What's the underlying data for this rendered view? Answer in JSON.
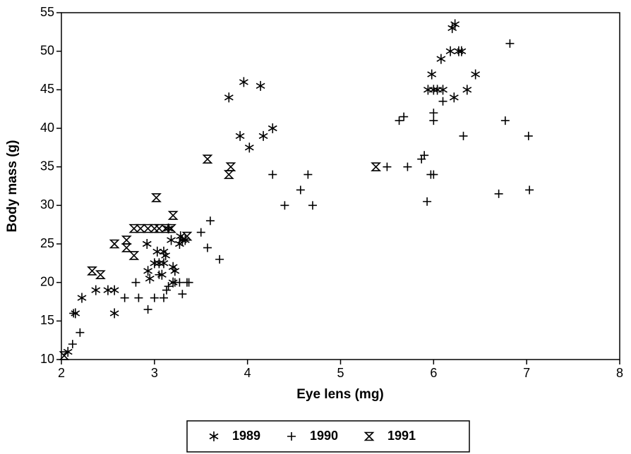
{
  "chart_data": {
    "type": "scatter",
    "xlabel": "Eye lens (mg)",
    "ylabel": "Body mass (g)",
    "xlim": [
      2,
      8
    ],
    "ylim": [
      10,
      55
    ],
    "xticks": [
      2,
      3,
      4,
      5,
      6,
      7,
      8
    ],
    "yticks": [
      10,
      15,
      20,
      25,
      30,
      35,
      40,
      45,
      50,
      55
    ],
    "grid": false,
    "legend": "bottom",
    "series": [
      {
        "name": "1989",
        "color": "#000000",
        "marker": "asterisk",
        "x": [
          2.07,
          2.15,
          2.22,
          2.37,
          2.5,
          2.57,
          2.57,
          2.92,
          2.93,
          2.95,
          3.0,
          3.03,
          3.05,
          3.08,
          3.1,
          3.1,
          3.12,
          3.15,
          3.18,
          3.2,
          3.2,
          3.22,
          3.27,
          3.28,
          3.3,
          3.33,
          3.8,
          3.92,
          3.96,
          4.02,
          4.14,
          4.17,
          4.27,
          5.94,
          5.98,
          6.0,
          6.04,
          6.08,
          6.1,
          6.18,
          6.2,
          6.22,
          6.23,
          6.27,
          6.3,
          6.36,
          6.45
        ],
        "values": [
          11,
          16,
          18,
          19,
          19,
          19,
          16,
          25,
          21.5,
          20.5,
          22.5,
          24,
          22.5,
          21,
          24,
          22.5,
          23.5,
          27,
          25.5,
          22,
          20,
          21.5,
          25,
          26,
          25.5,
          25.5,
          44,
          39,
          46,
          37.5,
          45.5,
          39,
          40,
          45,
          47,
          45,
          45,
          49,
          45,
          50,
          53,
          44,
          53.5,
          50,
          50,
          45,
          47
        ]
      },
      {
        "name": "1990",
        "color": "#000000",
        "marker": "plus",
        "x": [
          2.12,
          2.13,
          2.2,
          2.68,
          2.8,
          2.83,
          2.93,
          3.0,
          3.05,
          3.1,
          3.13,
          3.15,
          3.22,
          3.27,
          3.3,
          3.35,
          3.37,
          3.5,
          3.57,
          3.6,
          3.7,
          4.27,
          4.4,
          4.57,
          4.65,
          4.7,
          5.5,
          5.72,
          5.63,
          5.68,
          5.87,
          5.9,
          5.93,
          5.97,
          6.0,
          6.0,
          6.0,
          6.1,
          6.32,
          6.7,
          6.77,
          6.82,
          7.02,
          7.03
        ],
        "values": [
          12,
          16,
          13.5,
          18,
          20,
          18,
          16.5,
          18,
          21,
          18,
          19,
          19.5,
          20,
          20,
          18.5,
          20,
          20,
          26.5,
          24.5,
          28,
          23,
          34,
          30,
          32,
          34,
          30,
          35,
          35,
          41,
          41.5,
          36,
          36.5,
          30.5,
          34,
          34,
          42,
          41,
          43.5,
          39,
          31.5,
          41,
          51,
          39,
          32
        ]
      },
      {
        "name": "1991",
        "color": "#000000",
        "marker": "hourglass",
        "x": [
          2.03,
          2.33,
          2.42,
          2.57,
          2.7,
          2.7,
          2.78,
          2.78,
          2.85,
          2.93,
          3.0,
          3.02,
          3.05,
          3.12,
          3.18,
          3.2,
          3.35,
          3.57,
          3.8,
          3.82,
          5.38
        ],
        "values": [
          10.5,
          21.5,
          21,
          25,
          25.5,
          24.5,
          27,
          23.5,
          27,
          27,
          27,
          31,
          27,
          27,
          27,
          28.7,
          26,
          36,
          34,
          35,
          35
        ]
      }
    ]
  }
}
